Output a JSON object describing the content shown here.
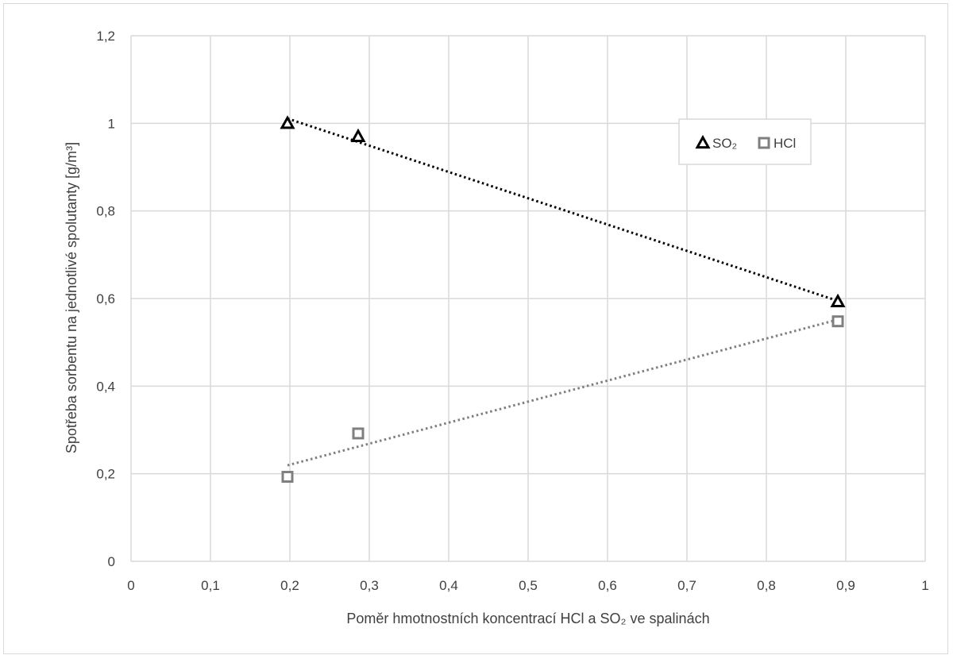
{
  "chart_data": {
    "type": "scatter",
    "title": "",
    "xlabel": "Poměr hmotnostních koncentrací HCl a SO₂ ve spalinách",
    "ylabel": "Spotřeba sorbentu na jednotlivé spolutanty [g/m³]",
    "xlim": [
      0,
      1
    ],
    "ylim": [
      0,
      1.2
    ],
    "x_ticks": [
      "0",
      "0,1",
      "0,2",
      "0,3",
      "0,4",
      "0,5",
      "0,6",
      "0,7",
      "0,8",
      "0,9",
      "1"
    ],
    "y_ticks": [
      "0",
      "0,2",
      "0,4",
      "0,6",
      "0,8",
      "1",
      "1,2"
    ],
    "grid": true,
    "legend_position": "top-right",
    "series": [
      {
        "name": "SO₂",
        "marker": "triangle",
        "color": "#000000",
        "trendline": "linear",
        "points": [
          {
            "x": 0.197,
            "y": 1.0
          },
          {
            "x": 0.286,
            "y": 0.97
          },
          {
            "x": 0.89,
            "y": 0.593
          }
        ]
      },
      {
        "name": "HCl",
        "marker": "square",
        "color": "#7f7f7f",
        "trendline": "linear",
        "points": [
          {
            "x": 0.197,
            "y": 0.193
          },
          {
            "x": 0.286,
            "y": 0.292
          },
          {
            "x": 0.89,
            "y": 0.548
          }
        ]
      }
    ]
  }
}
